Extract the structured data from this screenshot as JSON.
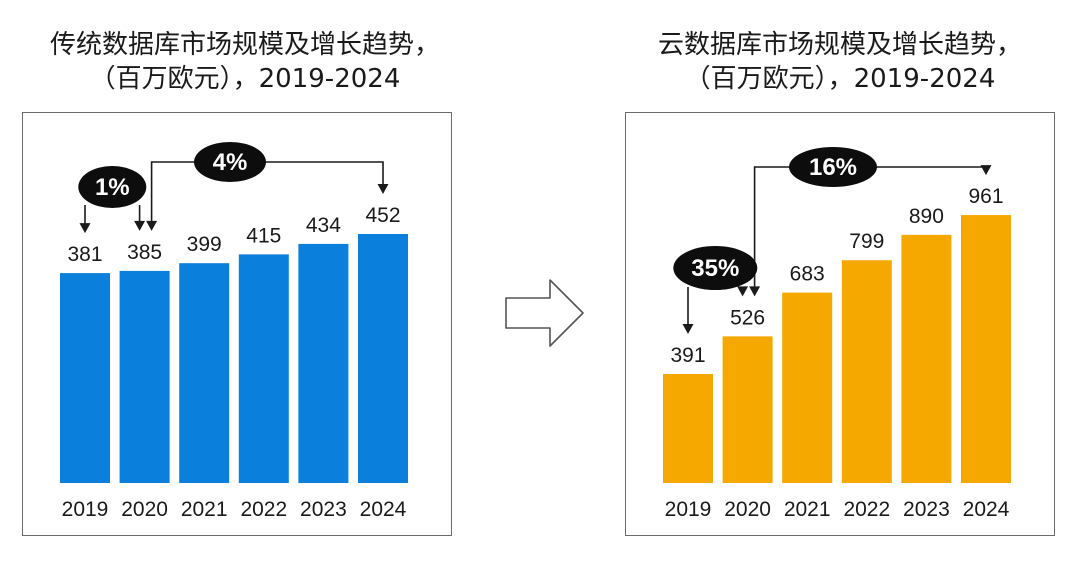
{
  "charts": {
    "left": {
      "title_line1": "传统数据库市场规模及增长趋势，",
      "title_line2": "（百万欧元），2019-2024",
      "bar_color": "#0a7fdc",
      "growth_short": "1%",
      "growth_long": "4%"
    },
    "right": {
      "title_line1": "云数据库市场规模及增长趋势，",
      "title_line2": "（百万欧元），2019-2024",
      "bar_color": "#f5a800",
      "growth_short": "35%",
      "growth_long": "16%"
    }
  },
  "chart_data": [
    {
      "type": "bar",
      "title": "传统数据库市场规模及增长趋势，（百万欧元），2019-2024",
      "categories": [
        "2019",
        "2020",
        "2021",
        "2022",
        "2023",
        "2024"
      ],
      "values": [
        381,
        385,
        399,
        415,
        434,
        452
      ],
      "annotations": [
        {
          "label": "1%",
          "from": "2019",
          "to": "2020"
        },
        {
          "label": "4%",
          "from": "2020",
          "to": "2024"
        }
      ],
      "color": "#0a7fdc",
      "grid": false
    },
    {
      "type": "bar",
      "title": "云数据库市场规模及增长趋势，（百万欧元），2019-2024",
      "categories": [
        "2019",
        "2020",
        "2021",
        "2022",
        "2023",
        "2024"
      ],
      "values": [
        391,
        526,
        683,
        799,
        890,
        961
      ],
      "annotations": [
        {
          "label": "35%",
          "from": "2019",
          "to": "2020"
        },
        {
          "label": "16%",
          "from": "2020",
          "to": "2024"
        }
      ],
      "color": "#f5a800",
      "grid": false
    }
  ]
}
